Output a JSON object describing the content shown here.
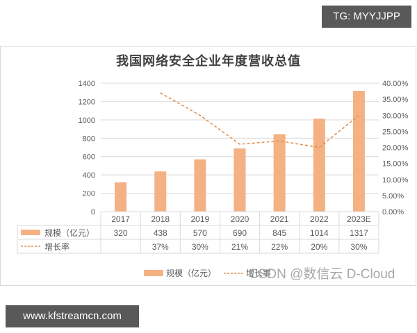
{
  "watermarks": {
    "top_right": "TG: MYYJJPP",
    "bottom_left": "www.kfstreamcn.com",
    "csdn": "CSDN @数信云 D-Cloud"
  },
  "colors": {
    "bar": "#F4B183",
    "line": "#E0924F",
    "grid": "#D9D9D9",
    "text": "#595959",
    "watermark_bg": "#595959"
  },
  "chart_data": {
    "type": "bar",
    "title": "我国网络安全企业年度营收总值",
    "categories": [
      "2017",
      "2018",
      "2019",
      "2020",
      "2021",
      "2022",
      "2023E"
    ],
    "series": [
      {
        "name": "规模（亿元）",
        "type": "bar",
        "axis": "left",
        "values": [
          320,
          438,
          570,
          690,
          845,
          1014,
          1317
        ]
      },
      {
        "name": "增长率",
        "type": "line",
        "style": "dashed",
        "axis": "right",
        "values": [
          null,
          37,
          30,
          21,
          22,
          20,
          30
        ],
        "unit": "%"
      }
    ],
    "y_left": {
      "ticks": [
        "0",
        "200",
        "400",
        "600",
        "800",
        "1000",
        "1200",
        "1400"
      ],
      "ylim": [
        0,
        1400
      ]
    },
    "y_right": {
      "ticks": [
        "0.00%",
        "5.00%",
        "10.00%",
        "15.00%",
        "20.00%",
        "25.00%",
        "30.00%",
        "35.00%",
        "40.00%"
      ],
      "ylim": [
        0,
        40
      ]
    },
    "data_table": {
      "rows": [
        {
          "label": "规模（亿元）",
          "cells": [
            "320",
            "438",
            "570",
            "690",
            "845",
            "1014",
            "1317"
          ]
        },
        {
          "label": "增长率",
          "cells": [
            "",
            "37%",
            "30%",
            "21%",
            "22%",
            "20%",
            "30%"
          ]
        }
      ]
    },
    "legend": [
      "规模（亿元）",
      "增长率"
    ],
    "legend_position": "bottom",
    "grid": true,
    "xlabel": "",
    "ylabel": ""
  }
}
